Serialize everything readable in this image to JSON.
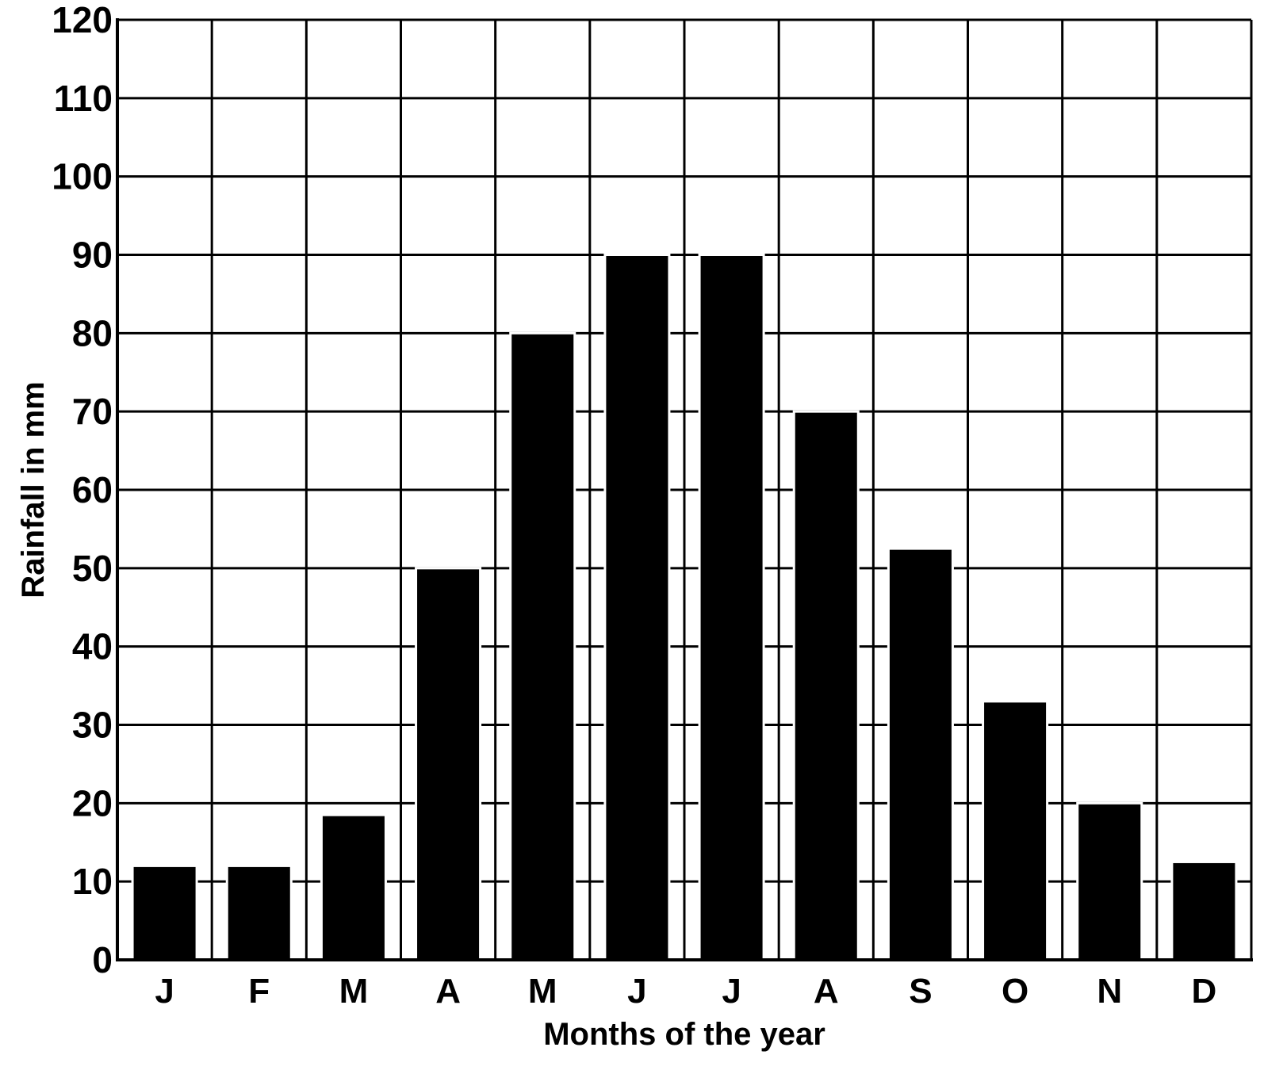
{
  "chart_data": {
    "type": "bar",
    "title": "",
    "xlabel": "Months of the year",
    "ylabel": "Rainfall in mm",
    "categories": [
      "J",
      "F",
      "M",
      "A",
      "M",
      "J",
      "J",
      "A",
      "S",
      "O",
      "N",
      "D"
    ],
    "values": [
      12,
      12,
      18.5,
      50,
      80,
      90,
      90,
      70,
      52.5,
      33,
      20,
      12.5
    ],
    "ylim": [
      0,
      120
    ],
    "yticks": [
      0,
      10,
      20,
      30,
      40,
      50,
      60,
      70,
      80,
      90,
      100,
      110,
      120
    ],
    "grid": true,
    "legend": "none",
    "colors": {
      "bar": "#000000",
      "grid": "#000000",
      "background": "#ffffff"
    }
  }
}
